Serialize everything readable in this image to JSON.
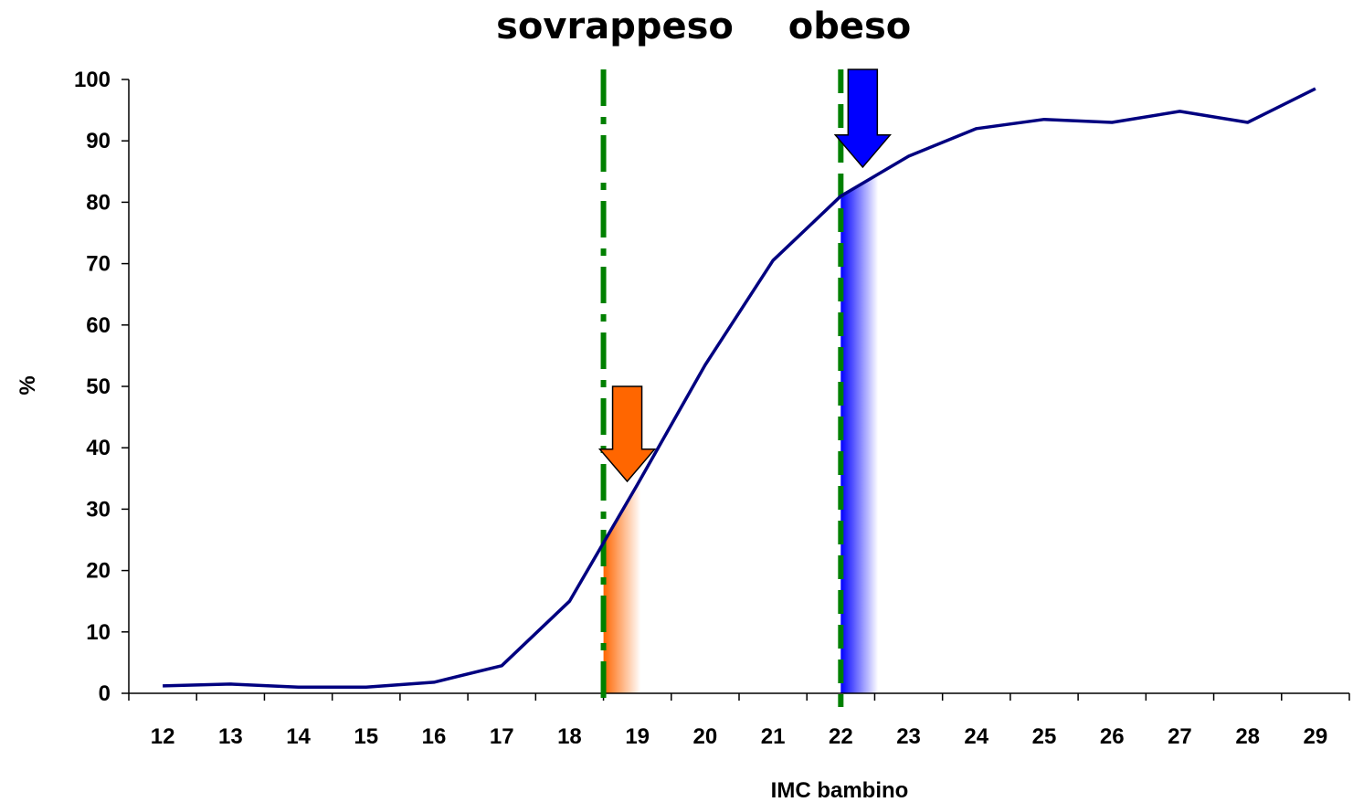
{
  "chart_data": {
    "type": "line",
    "xlabel": "IMC bambino",
    "ylabel": "%",
    "xlim": [
      12,
      29
    ],
    "ylim": [
      0,
      100
    ],
    "x_ticks": [
      12,
      13,
      14,
      15,
      16,
      17,
      18,
      19,
      20,
      21,
      22,
      23,
      24,
      25,
      26,
      27,
      28,
      29
    ],
    "y_ticks": [
      0,
      10,
      20,
      30,
      40,
      50,
      60,
      70,
      80,
      90,
      100
    ],
    "grid": false,
    "series": [
      {
        "color": "#000080",
        "x": [
          12,
          13,
          14,
          15,
          16,
          17,
          18,
          19,
          20,
          21,
          22,
          23,
          24,
          25,
          26,
          27,
          28,
          29
        ],
        "values": [
          1.2,
          1.5,
          1.0,
          1.0,
          1.8,
          4.5,
          15,
          34,
          53.5,
          70.5,
          81,
          87.5,
          92,
          93.5,
          93,
          94.8,
          93,
          98.5
        ]
      }
    ],
    "thresholds": [
      {
        "label": "sovrappeso",
        "x": 18.5,
        "style": "dash-dot",
        "color": "#008000",
        "arrow_color": "#FF6600",
        "fill_color": "#FF6600"
      },
      {
        "label": "obeso",
        "x": 22,
        "style": "dashed",
        "color": "#008000",
        "arrow_color": "#0000FF",
        "fill_color": "#0000FF"
      }
    ]
  }
}
